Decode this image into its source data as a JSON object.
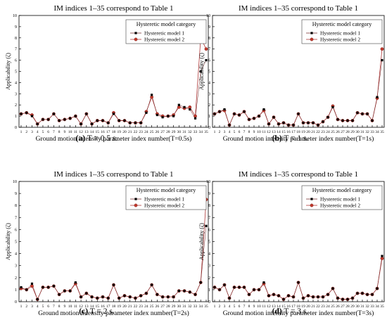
{
  "figure": {
    "captions": [
      {
        "letter": "(a)",
        "text": "T = 0.5 s."
      },
      {
        "letter": "(b)",
        "text": "T = 1 s."
      },
      {
        "letter": "(c)",
        "text": "T = 2 s."
      },
      {
        "letter": "(d)",
        "text": "T = 3 s."
      }
    ]
  },
  "chart_data": [
    {
      "type": "line",
      "title": "IM indices 1–35 correspond to Table 1",
      "xlabel": "Ground motion intensity parameter index number(T=0.5s)",
      "ylabel": "Applicability (ζ)",
      "x": [
        1,
        2,
        3,
        4,
        5,
        6,
        7,
        8,
        9,
        10,
        11,
        12,
        13,
        14,
        15,
        16,
        17,
        18,
        19,
        20,
        21,
        22,
        23,
        24,
        25,
        26,
        27,
        28,
        29,
        30,
        31,
        32,
        33,
        34,
        35
      ],
      "xticks": [
        "1",
        "2",
        "3",
        "4",
        "5",
        "6",
        "7",
        "8",
        "9",
        "10",
        "11",
        "12",
        "13",
        "14",
        "15",
        "16",
        "17",
        "18",
        "19",
        "20",
        "21",
        "22",
        "23",
        "24",
        "25",
        "26",
        "27",
        "28",
        "29",
        "30",
        "31",
        "32",
        "33",
        "34",
        "35"
      ],
      "yticks": [
        "0",
        "1",
        "2",
        "3",
        "4",
        "5",
        "6",
        "7",
        "8",
        "9",
        "10"
      ],
      "ylim": [
        0,
        10
      ],
      "legend": {
        "title": "Hysteretic model category",
        "position": "top-right"
      },
      "series": [
        {
          "name": "Hysteretic model 1",
          "color": "#000000",
          "values": [
            1.2,
            1.3,
            1.0,
            0.3,
            0.7,
            0.7,
            1.2,
            0.6,
            0.7,
            0.8,
            1.0,
            0.3,
            1.2,
            0.3,
            0.6,
            0.6,
            0.4,
            1.2,
            0.6,
            0.6,
            0.4,
            0.4,
            0.4,
            1.3,
            2.9,
            1.1,
            0.9,
            1.0,
            1.0,
            2.0,
            1.8,
            1.6,
            0.8,
            5.0,
            6.0
          ]
        },
        {
          "name": "Hysteretic model 2",
          "color": "#c0392b",
          "values": [
            1.2,
            1.3,
            1.1,
            0.3,
            0.7,
            0.7,
            1.2,
            0.6,
            0.7,
            0.8,
            1.0,
            0.3,
            1.2,
            0.3,
            0.6,
            0.6,
            0.4,
            1.3,
            0.6,
            0.6,
            0.4,
            0.4,
            0.4,
            1.4,
            2.7,
            1.2,
            1.0,
            1.0,
            1.1,
            1.8,
            1.7,
            1.8,
            1.0,
            8.0,
            7.0
          ]
        }
      ]
    },
    {
      "type": "line",
      "title": "IM indices 1–35 correspond to Table 1",
      "xlabel": "Ground motion intensity parameter index number(T=1s)",
      "ylabel": "Applicability (ζ)",
      "x": [
        1,
        2,
        3,
        4,
        5,
        6,
        7,
        8,
        9,
        10,
        11,
        12,
        13,
        14,
        15,
        16,
        17,
        18,
        19,
        20,
        21,
        22,
        23,
        24,
        25,
        26,
        27,
        28,
        29,
        30,
        31,
        32,
        33,
        34,
        35
      ],
      "xticks": [
        "1",
        "2",
        "3",
        "4",
        "5",
        "6",
        "7",
        "8",
        "9",
        "10",
        "11",
        "12",
        "13",
        "14",
        "15",
        "16",
        "17",
        "18",
        "19",
        "20",
        "21",
        "22",
        "23",
        "24",
        "25",
        "26",
        "27",
        "28",
        "29",
        "30",
        "31",
        "32",
        "33",
        "34",
        "35"
      ],
      "yticks": [
        "0",
        "1",
        "2",
        "3",
        "4",
        "5",
        "6",
        "7",
        "8",
        "9",
        "10"
      ],
      "ylim": [
        0,
        10
      ],
      "legend": {
        "title": "Hysteretic model category",
        "position": "top-right"
      },
      "series": [
        {
          "name": "Hysteretic model 1",
          "color": "#000000",
          "values": [
            1.2,
            1.4,
            1.6,
            0.2,
            1.2,
            1.1,
            1.4,
            0.7,
            0.8,
            1.0,
            1.6,
            0.3,
            0.9,
            0.3,
            0.4,
            0.2,
            0.2,
            1.2,
            0.4,
            0.4,
            0.4,
            0.2,
            0.5,
            0.9,
            1.8,
            0.7,
            0.6,
            0.6,
            0.6,
            1.3,
            1.2,
            1.2,
            0.6,
            2.7,
            6.0
          ]
        },
        {
          "name": "Hysteretic model 2",
          "color": "#c0392b",
          "values": [
            1.2,
            1.4,
            1.5,
            0.2,
            1.2,
            1.1,
            1.4,
            0.7,
            0.8,
            1.0,
            1.5,
            0.3,
            0.9,
            0.3,
            0.4,
            0.2,
            0.2,
            1.2,
            0.4,
            0.4,
            0.4,
            0.2,
            0.5,
            0.9,
            1.9,
            0.7,
            0.6,
            0.6,
            0.6,
            1.3,
            1.2,
            1.2,
            0.6,
            2.6,
            7.0
          ]
        }
      ]
    },
    {
      "type": "line",
      "title": "IM indices 1–35 correspond to Table 1",
      "xlabel": "Ground motion intensity parameter index number(T=2s)",
      "ylabel": "Applicability (ζ)",
      "x": [
        1,
        2,
        3,
        4,
        5,
        6,
        7,
        8,
        9,
        10,
        11,
        12,
        13,
        14,
        15,
        16,
        17,
        18,
        19,
        20,
        21,
        22,
        23,
        24,
        25,
        26,
        27,
        28,
        29,
        30,
        31,
        32,
        33,
        34,
        35
      ],
      "xticks": [
        "1",
        "2",
        "3",
        "4",
        "5",
        "6",
        "7",
        "8",
        "9",
        "10",
        "11",
        "12",
        "13",
        "14",
        "15",
        "16",
        "17",
        "18",
        "19",
        "20",
        "21",
        "22",
        "23",
        "24",
        "25",
        "26",
        "27",
        "28",
        "29",
        "30",
        "31",
        "32",
        "33",
        "34",
        "35"
      ],
      "yticks": [
        "0",
        "1",
        "2",
        "3",
        "4",
        "5",
        "6",
        "7",
        "8",
        "9",
        "10"
      ],
      "ylim": [
        0,
        10
      ],
      "legend": {
        "title": "Hysteretic model category",
        "position": "top-right"
      },
      "series": [
        {
          "name": "Hysteretic model 1",
          "color": "#000000",
          "values": [
            1.2,
            1.0,
            1.5,
            0.2,
            1.2,
            1.2,
            1.3,
            0.6,
            0.9,
            0.9,
            1.6,
            0.4,
            0.7,
            0.4,
            0.3,
            0.4,
            0.3,
            1.4,
            0.3,
            0.5,
            0.4,
            0.3,
            0.5,
            0.7,
            1.4,
            0.6,
            0.4,
            0.4,
            0.4,
            0.9,
            0.9,
            0.8,
            0.6,
            1.6,
            6.3
          ]
        },
        {
          "name": "Hysteretic model 2",
          "color": "#c0392b",
          "values": [
            1.1,
            1.0,
            1.3,
            0.2,
            1.2,
            1.2,
            1.3,
            0.6,
            0.9,
            0.9,
            1.5,
            0.4,
            0.7,
            0.4,
            0.3,
            0.4,
            0.3,
            1.4,
            0.3,
            0.5,
            0.4,
            0.3,
            0.5,
            0.7,
            1.4,
            0.6,
            0.4,
            0.4,
            0.4,
            0.9,
            0.9,
            0.8,
            0.6,
            1.6,
            8.5
          ]
        }
      ]
    },
    {
      "type": "line",
      "title": "IM indices 1–35 correspond to Table 1",
      "xlabel": "Ground motion intensity parameter index number(T=3s)",
      "ylabel": "Applicability (ζ)",
      "x": [
        1,
        2,
        3,
        4,
        5,
        6,
        7,
        8,
        9,
        10,
        11,
        12,
        13,
        14,
        15,
        16,
        17,
        18,
        19,
        20,
        21,
        22,
        23,
        24,
        25,
        26,
        27,
        28,
        29,
        30,
        31,
        32,
        33,
        34,
        35
      ],
      "xticks": [
        "1",
        "2",
        "3",
        "4",
        "5",
        "6",
        "7",
        "8",
        "9",
        "10",
        "11",
        "12",
        "13",
        "14",
        "15",
        "16",
        "17",
        "18",
        "19",
        "20",
        "21",
        "22",
        "23",
        "24",
        "25",
        "26",
        "27",
        "28",
        "29",
        "30",
        "31",
        "32",
        "33",
        "34",
        "35"
      ],
      "yticks": [
        "0",
        "1",
        "2",
        "3",
        "4",
        "5",
        "6",
        "7",
        "8",
        "9",
        "10"
      ],
      "ylim": [
        0,
        10
      ],
      "legend": {
        "title": "Hysteretic model category",
        "position": "top-right"
      },
      "series": [
        {
          "name": "Hysteretic model 1",
          "color": "#000000",
          "values": [
            1.2,
            1.0,
            1.4,
            0.3,
            1.2,
            1.2,
            1.2,
            0.6,
            1.0,
            1.0,
            1.6,
            0.5,
            0.6,
            0.5,
            0.2,
            0.5,
            0.4,
            1.6,
            0.3,
            0.5,
            0.4,
            0.4,
            0.4,
            0.6,
            1.1,
            0.3,
            0.2,
            0.2,
            0.3,
            0.7,
            0.7,
            0.6,
            0.6,
            1.1,
            3.8
          ]
        },
        {
          "name": "Hysteretic model 2",
          "color": "#c0392b",
          "values": [
            1.2,
            1.0,
            1.4,
            0.3,
            1.2,
            1.2,
            1.2,
            0.6,
            1.0,
            1.0,
            1.5,
            0.5,
            0.6,
            0.5,
            0.2,
            0.5,
            0.4,
            1.6,
            0.3,
            0.5,
            0.4,
            0.4,
            0.4,
            0.6,
            1.1,
            0.3,
            0.2,
            0.2,
            0.3,
            0.7,
            0.7,
            0.6,
            0.6,
            1.1,
            3.6
          ]
        }
      ]
    }
  ]
}
